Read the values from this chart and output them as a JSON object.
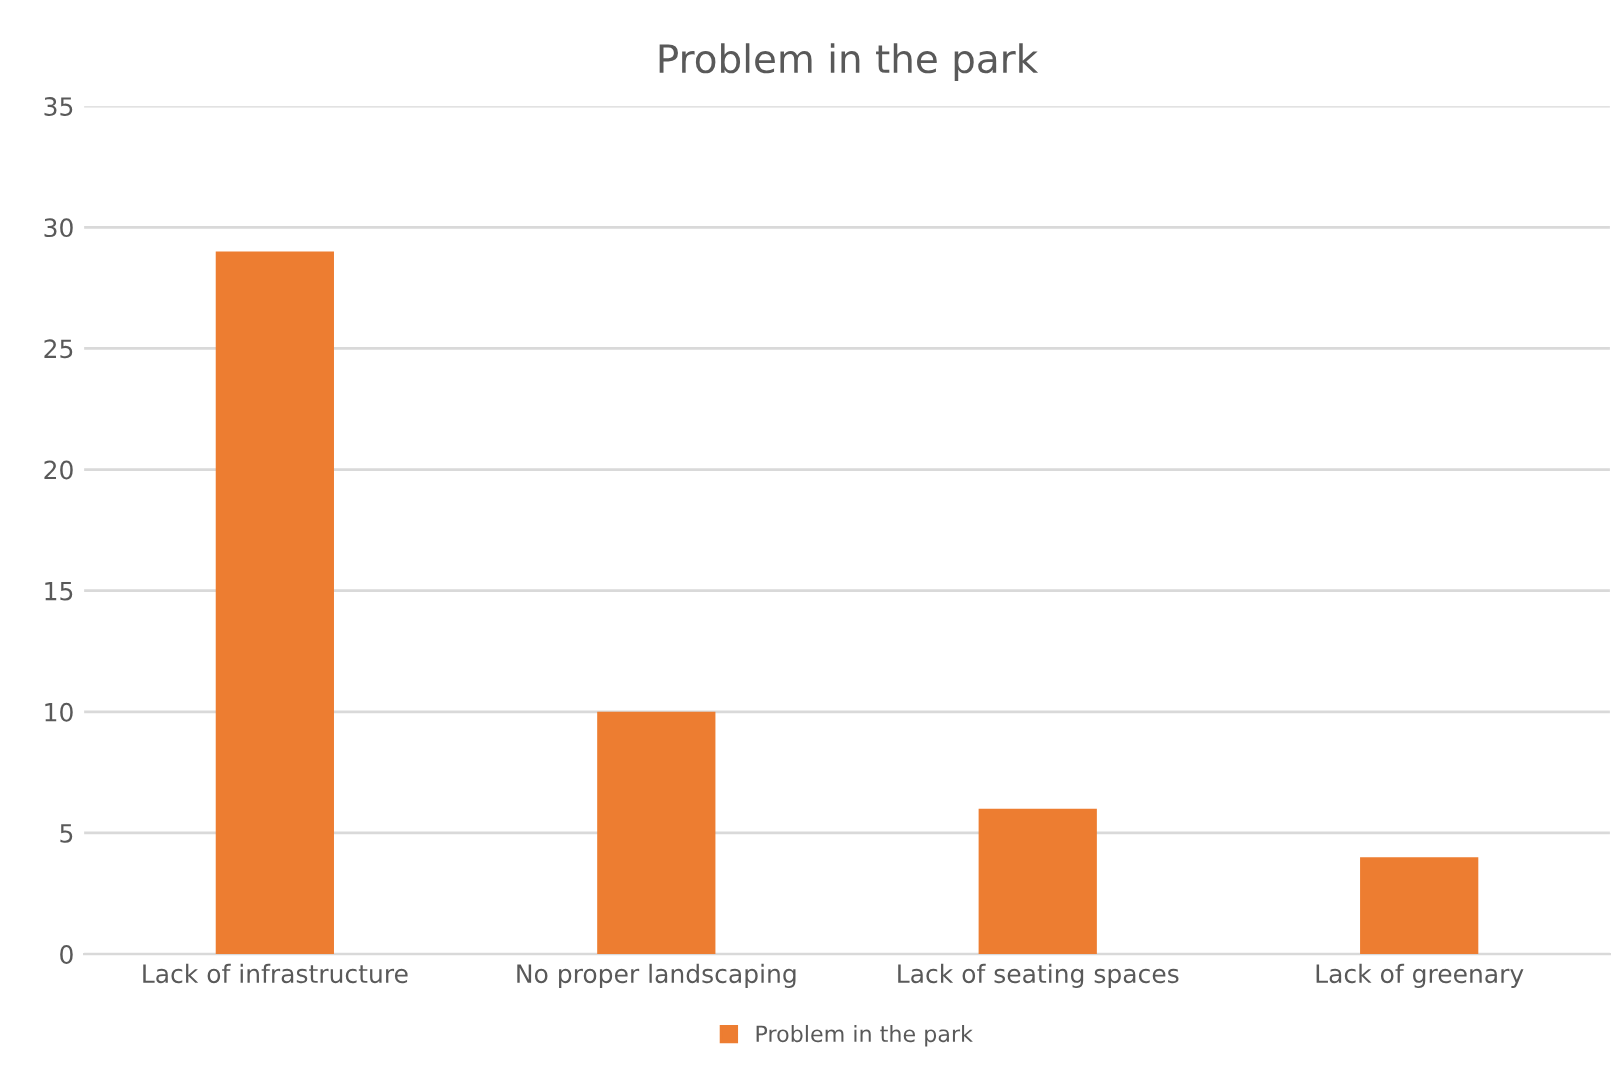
{
  "chart_data": {
    "type": "bar",
    "title": "Problem in the park",
    "categories": [
      "Lack of infrastructure",
      "No proper landscaping",
      "Lack of seating spaces",
      "Lack of greenary"
    ],
    "series": [
      {
        "name": "Problem in the park",
        "color": "#ed7d31",
        "values": [
          29,
          10,
          6,
          4
        ]
      }
    ],
    "ylim": [
      0,
      35
    ],
    "yticks": [
      0,
      5,
      10,
      15,
      20,
      25,
      30,
      35
    ],
    "grid": "y",
    "legend": "bottom"
  }
}
